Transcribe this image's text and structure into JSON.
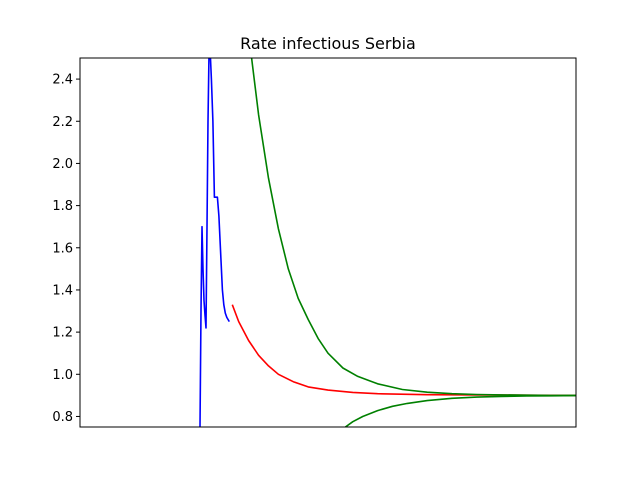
{
  "chart_data": {
    "type": "line",
    "title": "Rate infectious Serbia",
    "xlabel": "",
    "ylabel": "",
    "xlim": [
      0,
      100
    ],
    "ylim": [
      0.75,
      2.5
    ],
    "yticks": [
      0.8,
      1.0,
      1.2,
      1.4,
      1.6,
      1.8,
      2.0,
      2.2,
      2.4
    ],
    "ytick_labels": [
      "0.8",
      "1.0",
      "1.2",
      "1.4",
      "1.6",
      "1.8",
      "2.0",
      "2.2",
      "2.4"
    ],
    "show_xticks": false,
    "grid": false,
    "legend": "none",
    "series": [
      {
        "color": "#0000ff",
        "x": [
          24.2,
          24.4,
          24.6,
          24.8,
          25.0,
          25.2,
          25.4,
          25.6,
          25.8,
          26.0,
          26.2,
          26.5,
          26.8,
          27.1,
          27.4,
          27.7,
          28.0,
          28.4,
          28.7,
          29.0,
          29.3,
          29.6,
          30.1
        ],
        "y": [
          0.75,
          1.3,
          1.7,
          1.5,
          1.35,
          1.28,
          1.22,
          1.7,
          2.2,
          2.52,
          2.55,
          2.4,
          2.2,
          1.84,
          1.84,
          1.84,
          1.75,
          1.55,
          1.4,
          1.33,
          1.29,
          1.27,
          1.25
        ]
      },
      {
        "color": "#ff0000",
        "x": [
          30.7,
          32,
          34,
          36,
          38,
          40,
          43,
          46,
          50,
          55,
          60,
          70,
          80,
          90,
          100
        ],
        "y": [
          1.33,
          1.25,
          1.16,
          1.09,
          1.04,
          1.0,
          0.965,
          0.94,
          0.925,
          0.914,
          0.908,
          0.903,
          0.902,
          0.901,
          0.9
        ]
      },
      {
        "color": "#008000",
        "x": [
          34.6,
          36,
          38,
          40,
          42,
          44,
          46,
          48,
          50,
          53,
          56,
          60,
          65,
          70,
          75,
          80,
          85,
          90,
          95,
          100
        ],
        "y": [
          2.5,
          2.23,
          1.93,
          1.69,
          1.5,
          1.36,
          1.26,
          1.17,
          1.1,
          1.03,
          0.99,
          0.955,
          0.928,
          0.915,
          0.908,
          0.904,
          0.902,
          0.901,
          0.9,
          0.9
        ]
      },
      {
        "color": "#008000",
        "x": [
          53.5,
          55,
          57,
          60,
          63,
          66,
          70,
          75,
          80,
          85,
          90,
          95,
          100
        ],
        "y": [
          0.75,
          0.775,
          0.8,
          0.828,
          0.848,
          0.862,
          0.875,
          0.886,
          0.892,
          0.895,
          0.897,
          0.898,
          0.899
        ]
      }
    ]
  }
}
